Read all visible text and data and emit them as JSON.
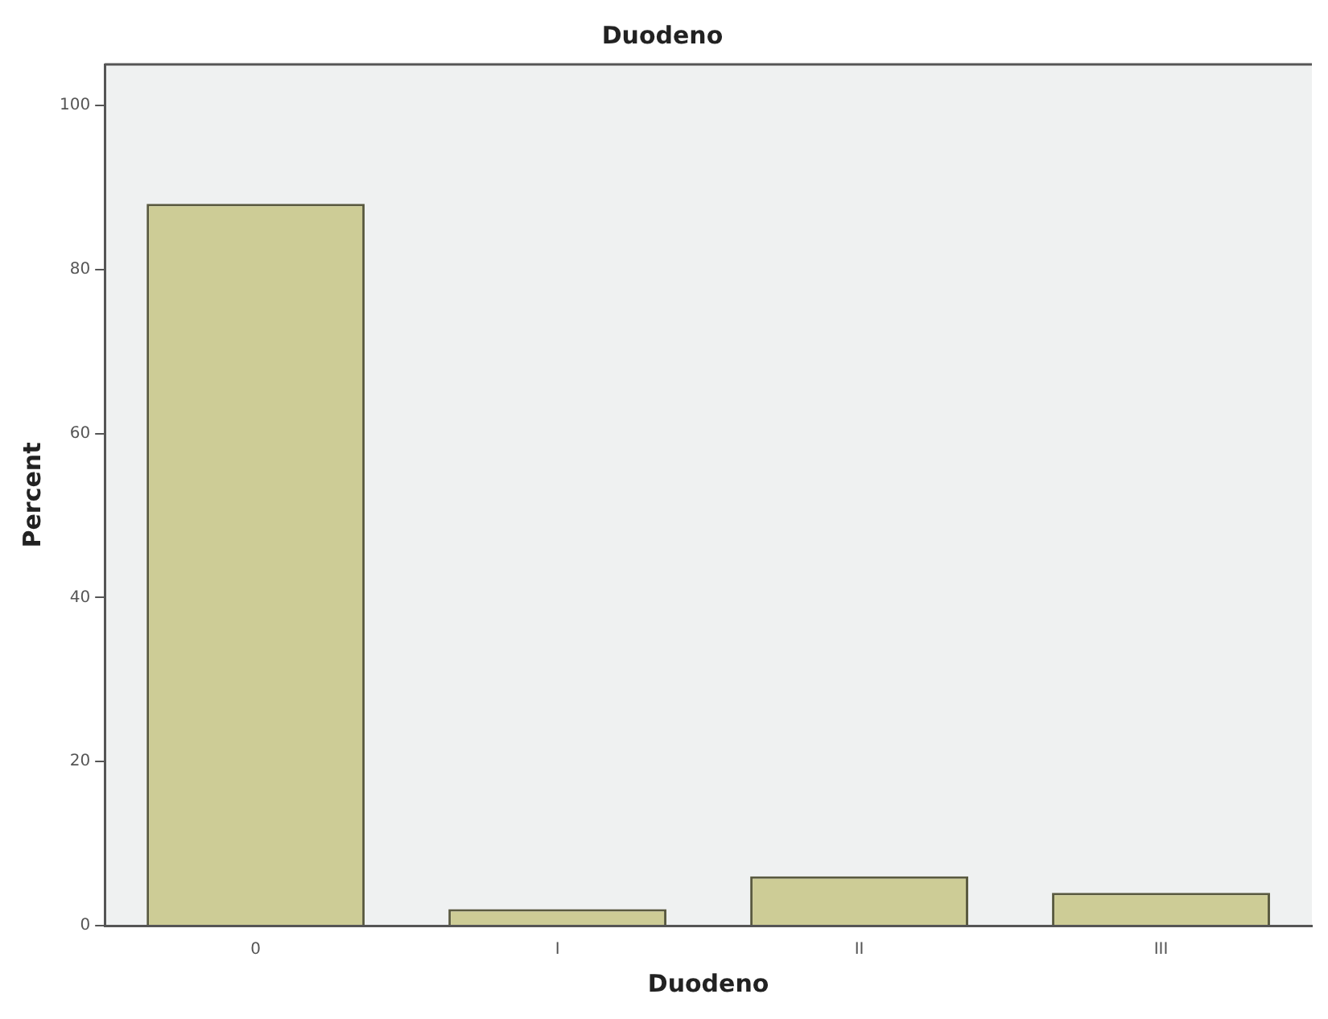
{
  "chart_data": {
    "type": "bar",
    "title": "Duodeno",
    "xlabel": "Duodeno",
    "ylabel": "Percent",
    "categories": [
      "0",
      "I",
      "II",
      "III"
    ],
    "values": [
      88,
      2,
      6,
      4
    ],
    "color": "#cdcc96",
    "ylim": [
      0,
      105
    ],
    "yticks": [
      0,
      20,
      40,
      60,
      80,
      100
    ],
    "grid": false,
    "legend": false
  }
}
